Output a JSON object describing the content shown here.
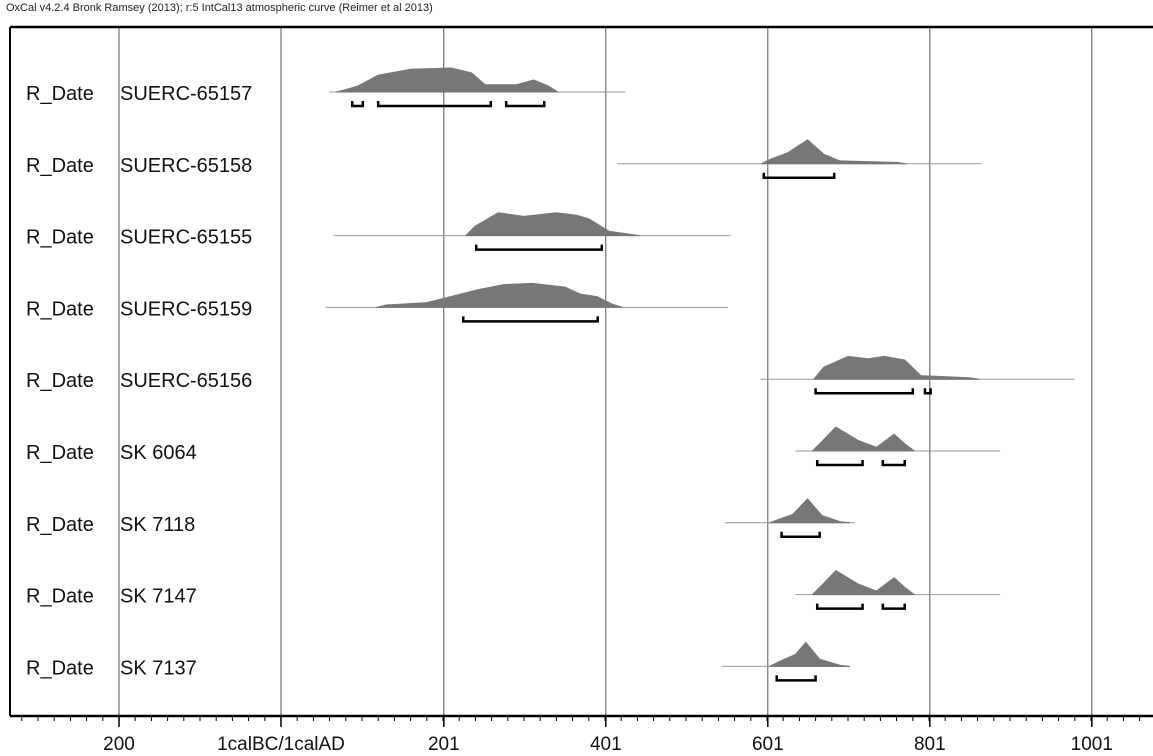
{
  "header": "OxCal v4.2.4 Bronk Ramsey (2013); r:5 IntCal13 atmospheric curve (Reimer et al 2013)",
  "chart_data": {
    "type": "multiplot-probability",
    "xlim": [
      -400,
      1260
    ],
    "gridlines": [
      -200,
      0,
      201,
      401,
      601,
      801,
      1001
    ],
    "tick_labels": [
      {
        "value": -200,
        "label": "200"
      },
      {
        "value": 0,
        "label": "1calBC/1calAD"
      },
      {
        "value": 201,
        "label": "201"
      },
      {
        "value": 401,
        "label": "401"
      },
      {
        "value": 601,
        "label": "601"
      },
      {
        "value": 801,
        "label": "801"
      },
      {
        "value": 1001,
        "label": "1001"
      }
    ],
    "colors": {
      "fill": "#777777",
      "line": "#999999",
      "axis": "#000000",
      "grid": "#555555"
    },
    "dates": [
      {
        "prefix": "R_Date",
        "name": "SUERC-65157",
        "line": [
          60,
          425
        ],
        "ranges": [
          [
            88,
            101
          ],
          [
            120,
            259
          ],
          [
            278,
            325
          ]
        ],
        "peaks": [
          [
            80,
            0.1
          ],
          [
            95,
            0.25
          ],
          [
            120,
            0.7
          ],
          [
            160,
            0.95
          ],
          [
            210,
            1.0
          ],
          [
            235,
            0.8
          ],
          [
            252,
            0.3
          ],
          [
            290,
            0.3
          ],
          [
            312,
            0.5
          ],
          [
            330,
            0.25
          ]
        ]
      },
      {
        "prefix": "R_Date",
        "name": "SUERC-65158",
        "line": [
          415,
          865
        ],
        "ranges": [
          [
            596,
            683
          ]
        ],
        "peaks": [
          [
            605,
            0.2
          ],
          [
            625,
            0.45
          ],
          [
            650,
            1.0
          ],
          [
            670,
            0.4
          ],
          [
            690,
            0.12
          ],
          [
            760,
            0.06
          ]
        ]
      },
      {
        "prefix": "R_Date",
        "name": "SUERC-65155",
        "line": [
          65,
          555
        ],
        "ranges": [
          [
            241,
            396
          ]
        ],
        "peaks": [
          [
            240,
            0.4
          ],
          [
            268,
            0.95
          ],
          [
            300,
            0.8
          ],
          [
            340,
            0.95
          ],
          [
            365,
            0.85
          ],
          [
            380,
            0.7
          ],
          [
            405,
            0.18
          ],
          [
            430,
            0.06
          ]
        ]
      },
      {
        "prefix": "R_Date",
        "name": "SUERC-65159",
        "line": [
          55,
          552
        ],
        "ranges": [
          [
            225,
            391
          ]
        ],
        "peaks": [
          [
            130,
            0.1
          ],
          [
            180,
            0.2
          ],
          [
            245,
            0.75
          ],
          [
            275,
            0.95
          ],
          [
            310,
            1.0
          ],
          [
            350,
            0.85
          ],
          [
            370,
            0.55
          ],
          [
            390,
            0.45
          ],
          [
            410,
            0.12
          ]
        ]
      },
      {
        "prefix": "R_Date",
        "name": "SUERC-65156",
        "line": [
          592,
          980
        ],
        "ranges": [
          [
            660,
            780
          ],
          [
            795,
            802
          ]
        ],
        "peaks": [
          [
            670,
            0.5
          ],
          [
            700,
            0.95
          ],
          [
            725,
            0.85
          ],
          [
            745,
            0.95
          ],
          [
            770,
            0.8
          ],
          [
            790,
            0.15
          ],
          [
            850,
            0.06
          ]
        ]
      },
      {
        "prefix": "R_Date",
        "name": "SK 6064",
        "line": [
          635,
          888
        ],
        "ranges": [
          [
            662,
            718
          ],
          [
            743,
            770
          ]
        ],
        "peaks": [
          [
            668,
            0.4
          ],
          [
            685,
            1.0
          ],
          [
            712,
            0.45
          ],
          [
            735,
            0.15
          ],
          [
            757,
            0.7
          ],
          [
            770,
            0.3
          ]
        ]
      },
      {
        "prefix": "R_Date",
        "name": "SK 7118",
        "line": [
          548,
          708
        ],
        "ranges": [
          [
            618,
            665
          ]
        ],
        "peaks": [
          [
            615,
            0.15
          ],
          [
            632,
            0.35
          ],
          [
            650,
            1.0
          ],
          [
            668,
            0.3
          ],
          [
            690,
            0.05
          ]
        ]
      },
      {
        "prefix": "R_Date",
        "name": "SK 7147",
        "line": [
          635,
          888
        ],
        "ranges": [
          [
            662,
            718
          ],
          [
            743,
            770
          ]
        ],
        "peaks": [
          [
            668,
            0.4
          ],
          [
            685,
            1.0
          ],
          [
            712,
            0.45
          ],
          [
            735,
            0.15
          ],
          [
            757,
            0.7
          ],
          [
            770,
            0.3
          ]
        ]
      },
      {
        "prefix": "R_Date",
        "name": "SK 7137",
        "line": [
          544,
          702
        ],
        "ranges": [
          [
            612,
            660
          ]
        ],
        "peaks": [
          [
            615,
            0.2
          ],
          [
            635,
            0.5
          ],
          [
            648,
            1.0
          ],
          [
            665,
            0.3
          ],
          [
            690,
            0.05
          ]
        ]
      }
    ]
  }
}
